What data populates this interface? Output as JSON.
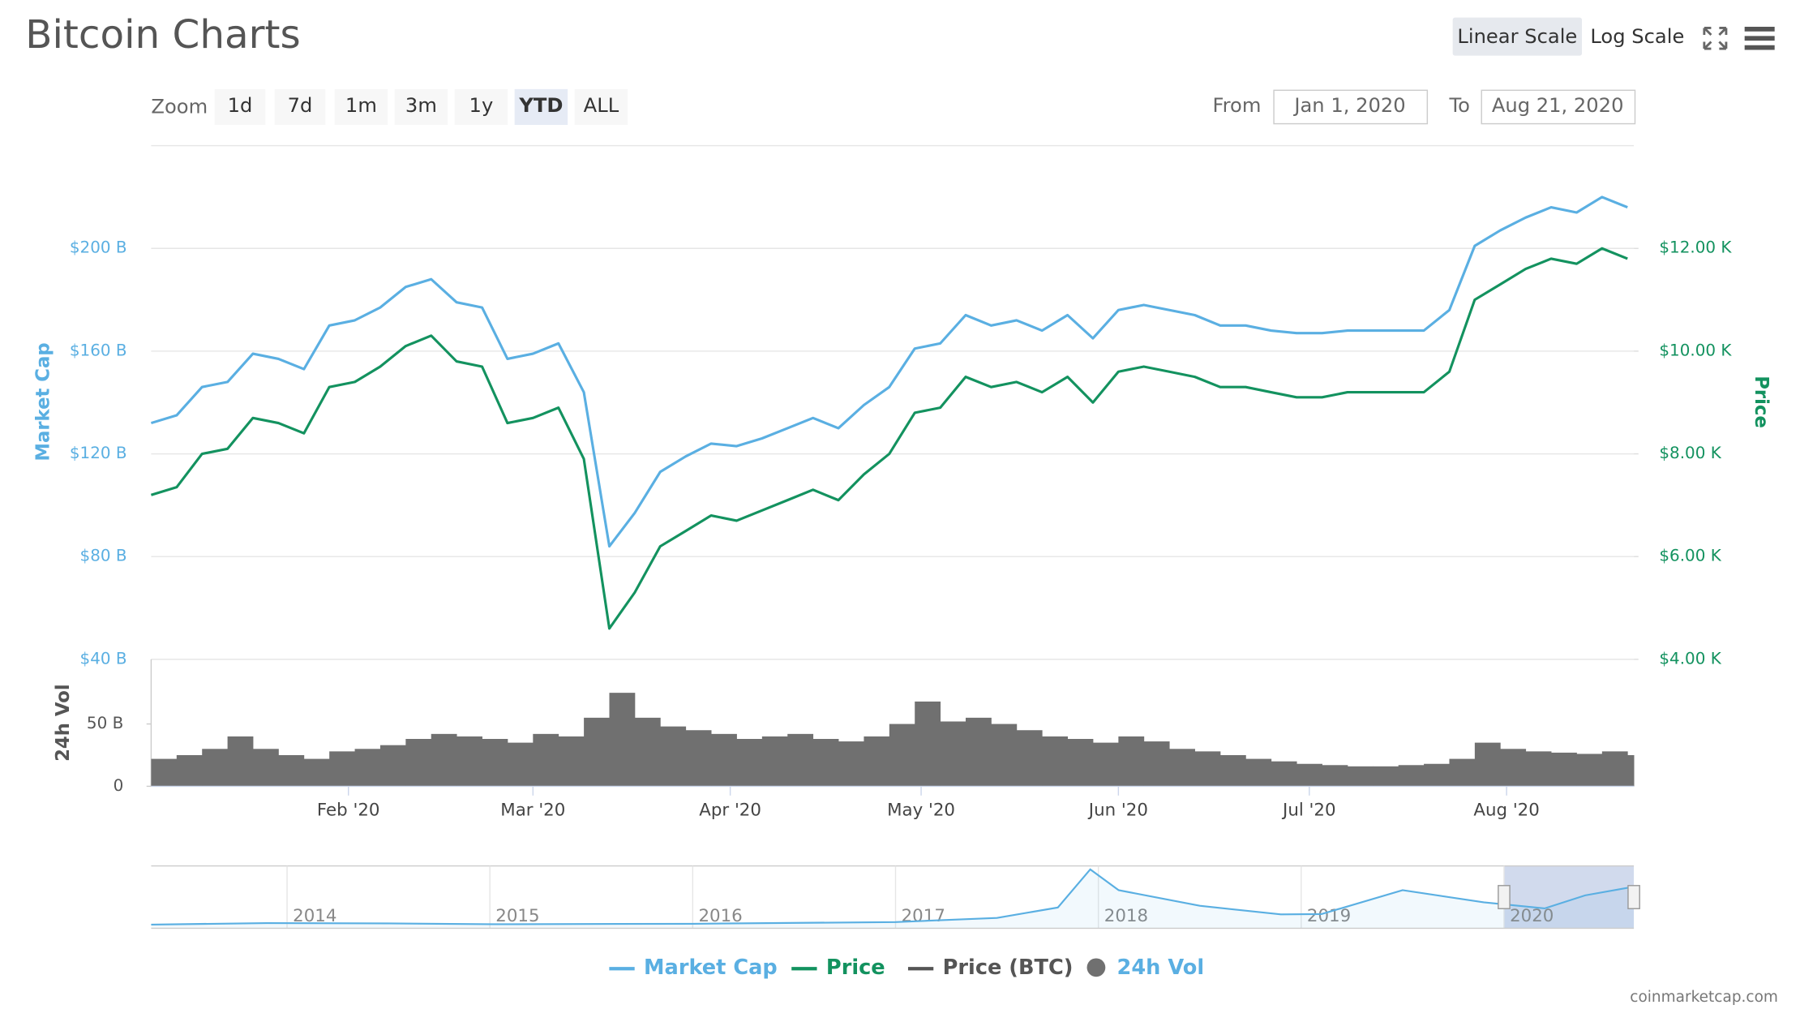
{
  "header": {
    "title": "Bitcoin Charts",
    "scale_buttons": [
      "Linear Scale",
      "Log Scale"
    ],
    "active_scale": 0
  },
  "zoom": {
    "label": "Zoom",
    "options": [
      "1d",
      "7d",
      "1m",
      "3m",
      "1y",
      "YTD",
      "ALL"
    ],
    "active": 5
  },
  "range": {
    "from_label": "From",
    "from": "Jan 1, 2020",
    "to_label": "To",
    "to": "Aug 21, 2020"
  },
  "chart_data": {
    "type": "line",
    "x": [
      0,
      4,
      8,
      12,
      16,
      20,
      24,
      28,
      32,
      36,
      40,
      44,
      48,
      52,
      56,
      60,
      64,
      68,
      72,
      76,
      80,
      84,
      88,
      92,
      96,
      100,
      104,
      108,
      112,
      116,
      120,
      124,
      128,
      132,
      136,
      140,
      144,
      148,
      152,
      156,
      160,
      164,
      168,
      172,
      176,
      180,
      184,
      188,
      192,
      196,
      200,
      204,
      208,
      212,
      216,
      220,
      224,
      228,
      232
    ],
    "xlim": [
      0,
      233
    ],
    "xticks": [
      {
        "value": 31,
        "label": "Feb '20"
      },
      {
        "value": 60,
        "label": "Mar '20"
      },
      {
        "value": 91,
        "label": "Apr '20"
      },
      {
        "value": 121,
        "label": "May '20"
      },
      {
        "value": 152,
        "label": "Jun '20"
      },
      {
        "value": 182,
        "label": "Jul '20"
      },
      {
        "value": 213,
        "label": "Aug '20"
      }
    ],
    "ylabel": "Market Cap",
    "y2label": "Price",
    "ylim": [
      40,
      240
    ],
    "yticks": [
      {
        "value": 40,
        "label": "$40 B"
      },
      {
        "value": 80,
        "label": "$80 B"
      },
      {
        "value": 120,
        "label": "$120 B"
      },
      {
        "value": 160,
        "label": "$160 B"
      },
      {
        "value": 200,
        "label": "$200 B"
      }
    ],
    "y2lim": [
      4000,
      14000
    ],
    "y2ticks": [
      {
        "value": 4000,
        "label": "$4.00 K"
      },
      {
        "value": 6000,
        "label": "$6.00 K"
      },
      {
        "value": 8000,
        "label": "$8.00 K"
      },
      {
        "value": 10000,
        "label": "$10.00 K"
      },
      {
        "value": 12000,
        "label": "$12.00 K"
      }
    ],
    "grid": true,
    "series": [
      {
        "name": "Market Cap",
        "color": "#5aafe2",
        "values": [
          132,
          135,
          146,
          148,
          159,
          157,
          153,
          170,
          172,
          177,
          185,
          188,
          179,
          177,
          157,
          159,
          163,
          144,
          84,
          97,
          113,
          119,
          124,
          123,
          126,
          130,
          134,
          130,
          139,
          146,
          161,
          163,
          174,
          170,
          172,
          168,
          174,
          165,
          176,
          178,
          176,
          174,
          170,
          170,
          168,
          167,
          167,
          168,
          168,
          168,
          168,
          176,
          201,
          207,
          212,
          216,
          214,
          220,
          216
        ]
      },
      {
        "name": "Price",
        "color": "#13925f",
        "axis": "y2",
        "values": [
          7200,
          7350,
          8000,
          8100,
          8700,
          8600,
          8400,
          9300,
          9400,
          9700,
          10100,
          10300,
          9800,
          9700,
          8600,
          8700,
          8900,
          7900,
          4600,
          5300,
          6200,
          6500,
          6800,
          6700,
          6900,
          7100,
          7300,
          7100,
          7600,
          8000,
          8800,
          8900,
          9500,
          9300,
          9400,
          9200,
          9500,
          9000,
          9600,
          9700,
          9600,
          9500,
          9300,
          9300,
          9200,
          9100,
          9100,
          9200,
          9200,
          9200,
          9200,
          9600,
          11000,
          11300,
          11600,
          11800,
          11700,
          12000,
          11800
        ]
      }
    ],
    "hidden_series": [
      {
        "name": "Price (BTC)",
        "color": "#555555"
      }
    ],
    "volume": {
      "label": "24h Vol",
      "name": "24h Vol",
      "color": "#707070",
      "values": [
        22,
        25,
        30,
        40,
        30,
        25,
        22,
        28,
        30,
        33,
        38,
        42,
        40,
        38,
        35,
        42,
        40,
        55,
        75,
        55,
        48,
        45,
        42,
        38,
        40,
        42,
        38,
        36,
        40,
        50,
        68,
        52,
        55,
        50,
        45,
        40,
        38,
        35,
        40,
        36,
        30,
        28,
        25,
        22,
        20,
        18,
        17,
        16,
        16,
        17,
        18,
        22,
        35,
        30,
        28,
        27,
        26,
        28,
        25
      ],
      "ylim": [
        0,
        100
      ],
      "yticks": [
        0,
        {
          "value": 50,
          "label": "50 B"
        }
      ]
    }
  },
  "navigator": {
    "x": [
      2013.33,
      2013.9,
      2014.5,
      2015,
      2016,
      2017,
      2017.5,
      2017.8,
      2017.96,
      2018.1,
      2018.5,
      2018.9,
      2019.1,
      2019.5,
      2019.9,
      2020.2,
      2020.4,
      2020.64
    ],
    "values": [
      1.5,
      10,
      8,
      3,
      6,
      16,
      40,
      100,
      320,
      200,
      110,
      60,
      62,
      200,
      130,
      95,
      170,
      220
    ],
    "xlim": [
      2013.33,
      2020.64
    ],
    "ylim": [
      0,
      340
    ],
    "xticks": [
      2014,
      2015,
      2016,
      2017,
      2018,
      2019,
      2020
    ],
    "selection": [
      2020,
      2020.64
    ]
  },
  "credit": "coinmarketcap.com"
}
